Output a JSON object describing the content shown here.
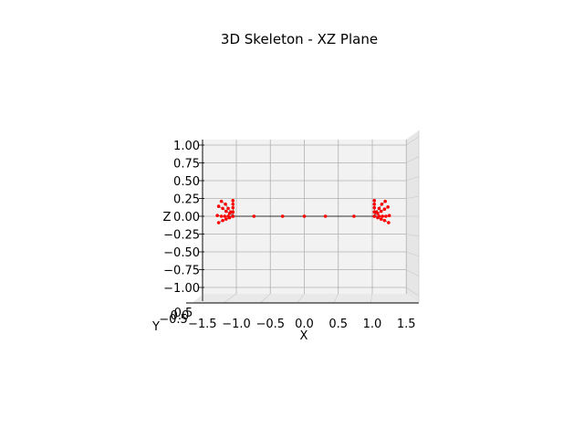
{
  "chart_data": {
    "type": "scatter",
    "title": "3D Skeleton - XZ Plane",
    "xlabel": "X",
    "ylabel": "Y",
    "zlabel": "Z",
    "xlim": [
      -1.5,
      1.5
    ],
    "zlim": [
      -1.0,
      1.0
    ],
    "x_ticks": [
      "−1.5",
      "−1.0",
      "−0.5",
      "0.0",
      "0.5",
      "1.0",
      "1.5"
    ],
    "z_ticks": [
      "1.00",
      "0.75",
      "0.50",
      "0.25",
      "0.00",
      "−0.25",
      "−0.50",
      "−0.75",
      "−1.00"
    ],
    "y_ticks_overlap": [
      "0.5",
      "0.0",
      "−0.5"
    ],
    "view": "XZ plane (looking along Y)",
    "grid": true,
    "marker_color": "#ff0000",
    "bone_color": "#000000",
    "joints": [
      {
        "x": -1.05,
        "z": 0.0
      },
      {
        "x": -0.74,
        "z": 0.0
      },
      {
        "x": -0.32,
        "z": 0.0
      },
      {
        "x": 0.0,
        "z": 0.0
      },
      {
        "x": 0.31,
        "z": 0.0
      },
      {
        "x": 0.73,
        "z": 0.0
      },
      {
        "x": 1.03,
        "z": 0.0
      }
    ],
    "left_hand_points": [
      {
        "x": -1.05,
        "z": 0.0
      },
      {
        "x": -1.1,
        "z": 0.04
      },
      {
        "x": -1.15,
        "z": 0.07
      },
      {
        "x": -1.2,
        "z": 0.11
      },
      {
        "x": -1.26,
        "z": 0.14
      },
      {
        "x": -1.08,
        "z": 0.06
      },
      {
        "x": -1.12,
        "z": 0.11
      },
      {
        "x": -1.16,
        "z": 0.17
      },
      {
        "x": -1.22,
        "z": 0.21
      },
      {
        "x": -1.05,
        "z": 0.06
      },
      {
        "x": -1.05,
        "z": 0.12
      },
      {
        "x": -1.05,
        "z": 0.17
      },
      {
        "x": -1.05,
        "z": 0.22
      },
      {
        "x": -1.12,
        "z": 0.0
      },
      {
        "x": -1.17,
        "z": 0.0
      },
      {
        "x": -1.22,
        "z": 0.0
      },
      {
        "x": -1.28,
        "z": 0.01
      },
      {
        "x": -1.1,
        "z": -0.02
      },
      {
        "x": -1.15,
        "z": -0.04
      },
      {
        "x": -1.2,
        "z": -0.06
      },
      {
        "x": -1.26,
        "z": -0.09
      }
    ],
    "right_hand_points": [
      {
        "x": 1.03,
        "z": 0.0
      },
      {
        "x": 1.08,
        "z": 0.04
      },
      {
        "x": 1.13,
        "z": 0.07
      },
      {
        "x": 1.18,
        "z": 0.1
      },
      {
        "x": 1.23,
        "z": 0.13
      },
      {
        "x": 1.06,
        "z": 0.06
      },
      {
        "x": 1.1,
        "z": 0.11
      },
      {
        "x": 1.14,
        "z": 0.17
      },
      {
        "x": 1.19,
        "z": 0.21
      },
      {
        "x": 1.03,
        "z": 0.06
      },
      {
        "x": 1.03,
        "z": 0.12
      },
      {
        "x": 1.03,
        "z": 0.17
      },
      {
        "x": 1.03,
        "z": 0.22
      },
      {
        "x": 1.1,
        "z": 0.0
      },
      {
        "x": 1.15,
        "z": 0.0
      },
      {
        "x": 1.2,
        "z": 0.0
      },
      {
        "x": 1.25,
        "z": 0.01
      },
      {
        "x": 1.08,
        "z": -0.02
      },
      {
        "x": 1.13,
        "z": -0.04
      },
      {
        "x": 1.18,
        "z": -0.06
      },
      {
        "x": 1.24,
        "z": -0.09
      }
    ]
  }
}
